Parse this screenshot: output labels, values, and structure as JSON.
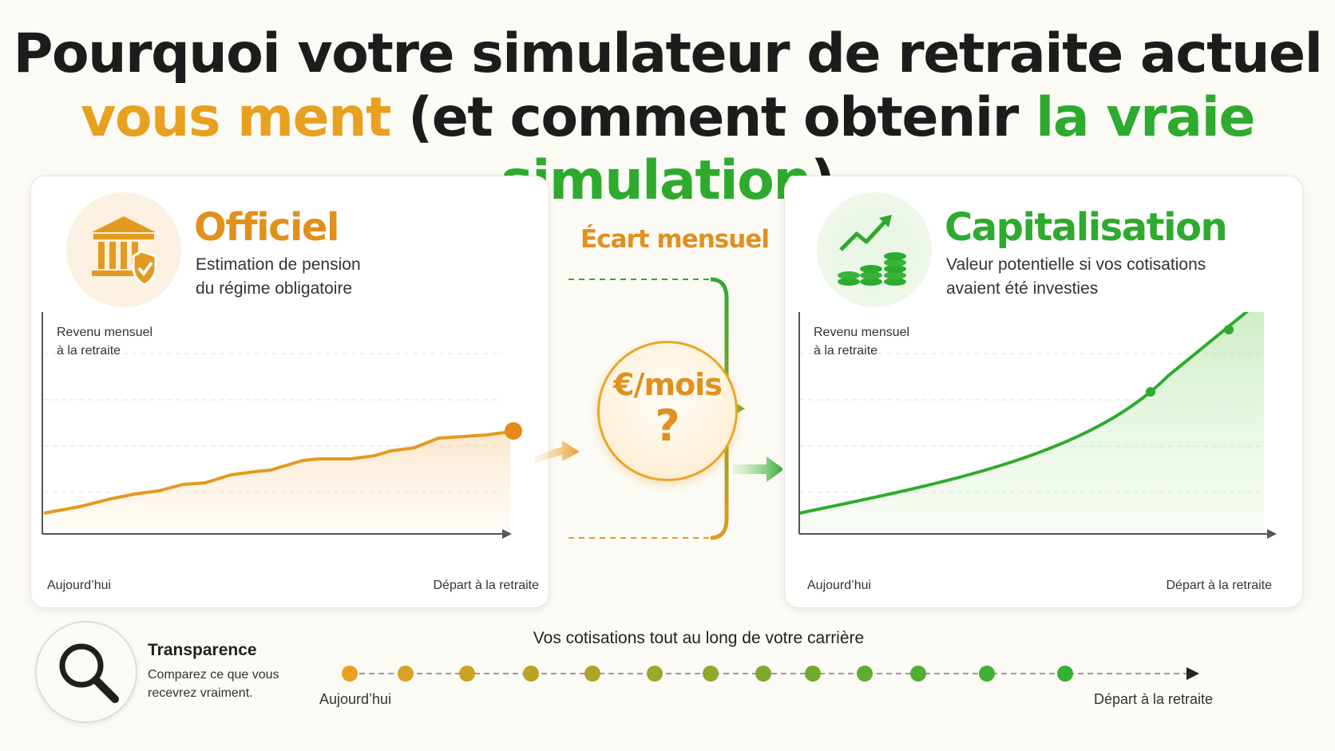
{
  "title": {
    "line1": "Pourquoi votre simulateur de retraite actuel",
    "line2_a": "vous ment",
    "line2_b": " (et comment obtenir ",
    "line2_c": "la vraie simulation",
    "line2_d": ")"
  },
  "colors": {
    "orange": "#e8a020",
    "green": "#2eaa2e",
    "background": "#fbfaf5"
  },
  "left_card": {
    "icon": "bank-shield-icon",
    "title": "Officiel",
    "subtitle_1": "Estimation de pension",
    "subtitle_2": "du régime obligatoire",
    "y_label_1": "Revenu mensuel",
    "y_label_2": "à la retraite",
    "x_start": "Aujourd’hui",
    "x_end": "Départ à la retraite"
  },
  "right_card": {
    "icon": "growth-coins-icon",
    "title": "Capitalisation",
    "subtitle_1": "Valeur potentielle si vos cotisations",
    "subtitle_2": "avaient été investies",
    "y_label_1": "Revenu mensuel",
    "y_label_2": "à la retraite",
    "x_start": "Aujourd’hui",
    "x_end": "Départ à la retraite"
  },
  "middle": {
    "title": "Écart mensuel",
    "coin_text": "€/mois",
    "coin_question": "?"
  },
  "transparency": {
    "icon": "magnifier-icon",
    "title": "Transparence",
    "subtitle_1": "Comparez ce que vous",
    "subtitle_2": "recevrez vraiment."
  },
  "timeline": {
    "title": "Vos cotisations tout au long de votre carrière",
    "start": "Aujourd’hui",
    "end": "Départ à la retraite",
    "dots": 13
  }
}
